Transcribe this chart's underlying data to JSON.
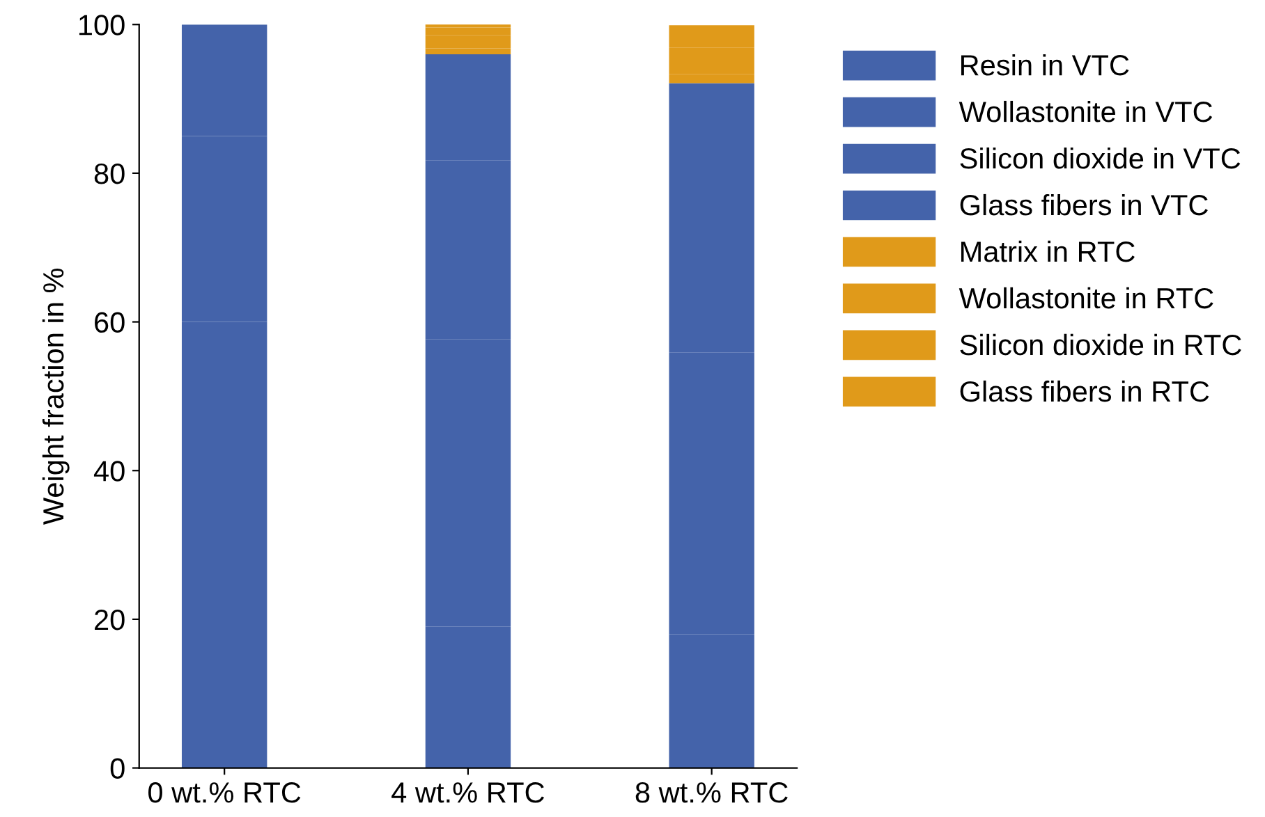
{
  "chart_data": {
    "type": "bar",
    "stacked": true,
    "ylabel": "Weight fraction in %",
    "categories": [
      "0 wt.% RTC",
      "4 wt.% RTC",
      "8 wt.% RTC"
    ],
    "series": [
      {
        "name": "Resin in VTC",
        "color": "#4463aa",
        "values": [
          20,
          19,
          18
        ]
      },
      {
        "name": "Wollastonite in VTC",
        "color": "#4463aa",
        "values": [
          40,
          38.7,
          37.9
        ]
      },
      {
        "name": "Silicon dioxide in VTC",
        "color": "#4463aa",
        "values": [
          25,
          24,
          22.6
        ]
      },
      {
        "name": "Glass fibers in VTC",
        "color": "#4463aa",
        "values": [
          15,
          14.3,
          13.6
        ]
      },
      {
        "name": "Matrix in RTC",
        "color": "#e09a1a",
        "values": [
          0,
          0.8,
          1.2
        ]
      },
      {
        "name": "Wollastonite in RTC",
        "color": "#e09a1a",
        "values": [
          0,
          1.8,
          3.6
        ]
      },
      {
        "name": "Silicon dioxide in RTC",
        "color": "#e09a1a",
        "values": [
          0,
          1.0,
          1.9
        ]
      },
      {
        "name": "Glass fibers in RTC",
        "color": "#e09a1a",
        "values": [
          0,
          0.5,
          1.1
        ]
      }
    ],
    "ylim": [
      0,
      100
    ],
    "yticks": [
      0,
      20,
      40,
      60,
      80,
      100
    ],
    "grid": false,
    "legend": "right"
  }
}
